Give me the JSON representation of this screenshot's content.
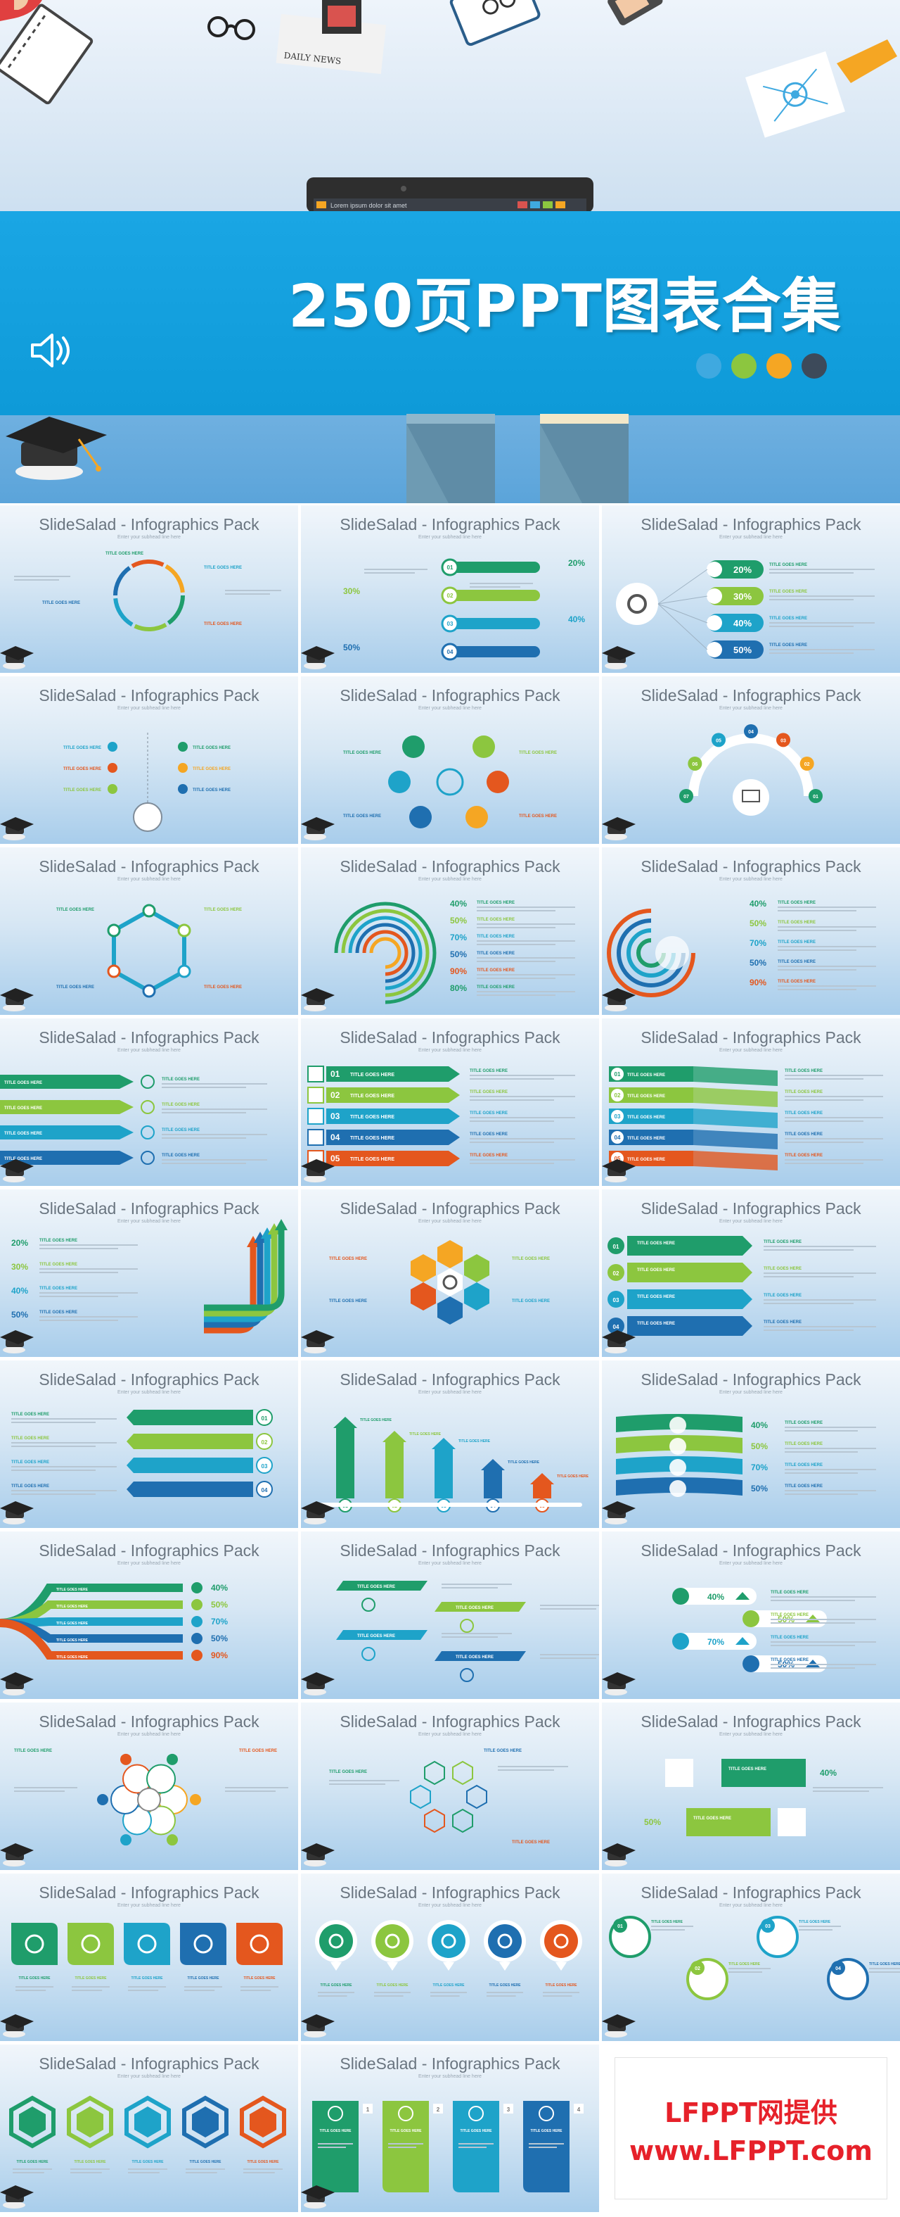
{
  "hero": {
    "title": "250页PPT图表合集",
    "laptop_screen_text": "Lorem ipsum dolor sit amet",
    "newspaper_text": "DAILY NEWS",
    "dot_colors": [
      "#3fa9e0",
      "#8cc63f",
      "#f5a623",
      "#3d4a5a"
    ]
  },
  "slides": {
    "title": "SlideSalad - Infographics Pack",
    "subtitle": "Enter your subhead line here",
    "title_goes_here": "TITLE GOES HERE",
    "percent_set_a": [
      "20%",
      "30%",
      "40%",
      "50%"
    ],
    "percent_set_b": [
      "40%",
      "50%",
      "70%",
      "50%",
      "90%",
      "80%"
    ],
    "numbers_01_05": [
      "01",
      "02",
      "03",
      "04",
      "05"
    ],
    "numbers_1_4": [
      "1",
      "2",
      "3",
      "4"
    ]
  },
  "watermark": {
    "line1": "LFPPT网提供",
    "line2": "www.LFPPT.com"
  },
  "colors": {
    "green": "#1f9d6b",
    "lime": "#8cc63f",
    "cyan": "#1ea3c9",
    "blue": "#1f6fb0",
    "orange": "#e4571e",
    "yellow": "#f5a623",
    "banner": "#12a0de"
  }
}
